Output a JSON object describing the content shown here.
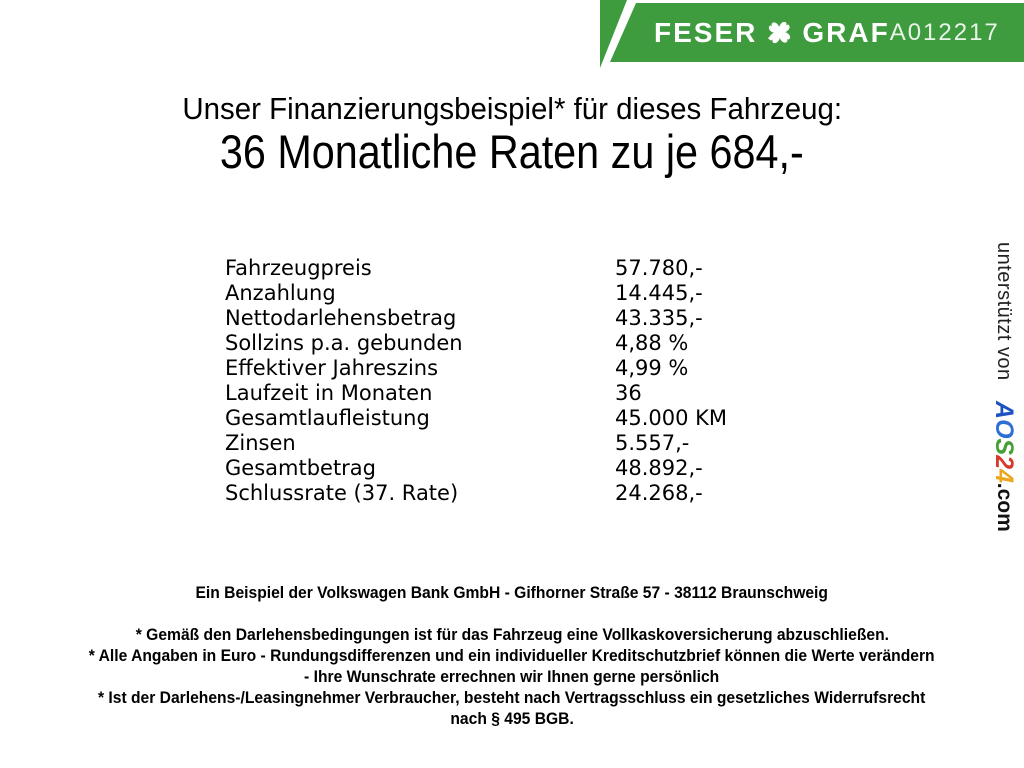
{
  "banner": {
    "brand_left": "FESER",
    "brand_right": "GRAF",
    "vehicle_id": "A012217",
    "green": "#3e9b3e"
  },
  "heading": {
    "line1": "Unser Finanzierungsbeispiel* für dieses Fahrzeug:",
    "line2": "36 Monatliche Raten zu je 684,-"
  },
  "finance_table": {
    "rows": [
      {
        "label": "Fahrzeugpreis",
        "value": "57.780,-"
      },
      {
        "label": "Anzahlung",
        "value": "14.445,-"
      },
      {
        "label": "Nettodarlehensbetrag",
        "value": "43.335,-"
      },
      {
        "label": "Sollzins p.a. gebunden",
        "value": "4,88 %"
      },
      {
        "label": "Effektiver Jahreszins",
        "value": "4,99 %"
      },
      {
        "label": "Laufzeit in Monaten",
        "value": "36"
      },
      {
        "label": "Gesamtlaufleistung",
        "value": "45.000 KM"
      },
      {
        "label": "Zinsen",
        "value": "5.557,-"
      },
      {
        "label": "Gesamtbetrag",
        "value": "48.892,-"
      },
      {
        "label": "Schlussrate (37. Rate)",
        "value": "24.268,-"
      }
    ]
  },
  "bank_line": "Ein Beispiel der Volkswagen Bank GmbH - Gifhorner Straße 57 - 38112 Braunschweig",
  "disclaimer": {
    "lines": [
      "* Gemäß den Darlehensbedingungen ist für das Fahrzeug eine Vollkaskoversicherung abzuschließen.",
      "* Alle Angaben in Euro - Rundungsdifferenzen und ein individueller Kreditschutzbrief können die Werte verändern",
      "- Ihre Wunschrate errechnen wir Ihnen gerne persönlich",
      "* Ist der Darlehens-/Leasingnehmer Verbraucher, besteht nach Vertragsschluss ein gesetzliches Widerrufsrecht",
      "nach § 495 BGB."
    ]
  },
  "sidebar": {
    "supported_by": "unterstützt von",
    "aos_logo": {
      "letters": [
        {
          "ch": "A",
          "color": "#1d52c0"
        },
        {
          "ch": "O",
          "color": "#2e6fd4"
        },
        {
          "ch": "S",
          "color": "#43a033"
        },
        {
          "ch": "2",
          "color": "#d63a2e"
        },
        {
          "ch": "4",
          "color": "#eba61c"
        }
      ],
      "suffix": ".com"
    }
  }
}
